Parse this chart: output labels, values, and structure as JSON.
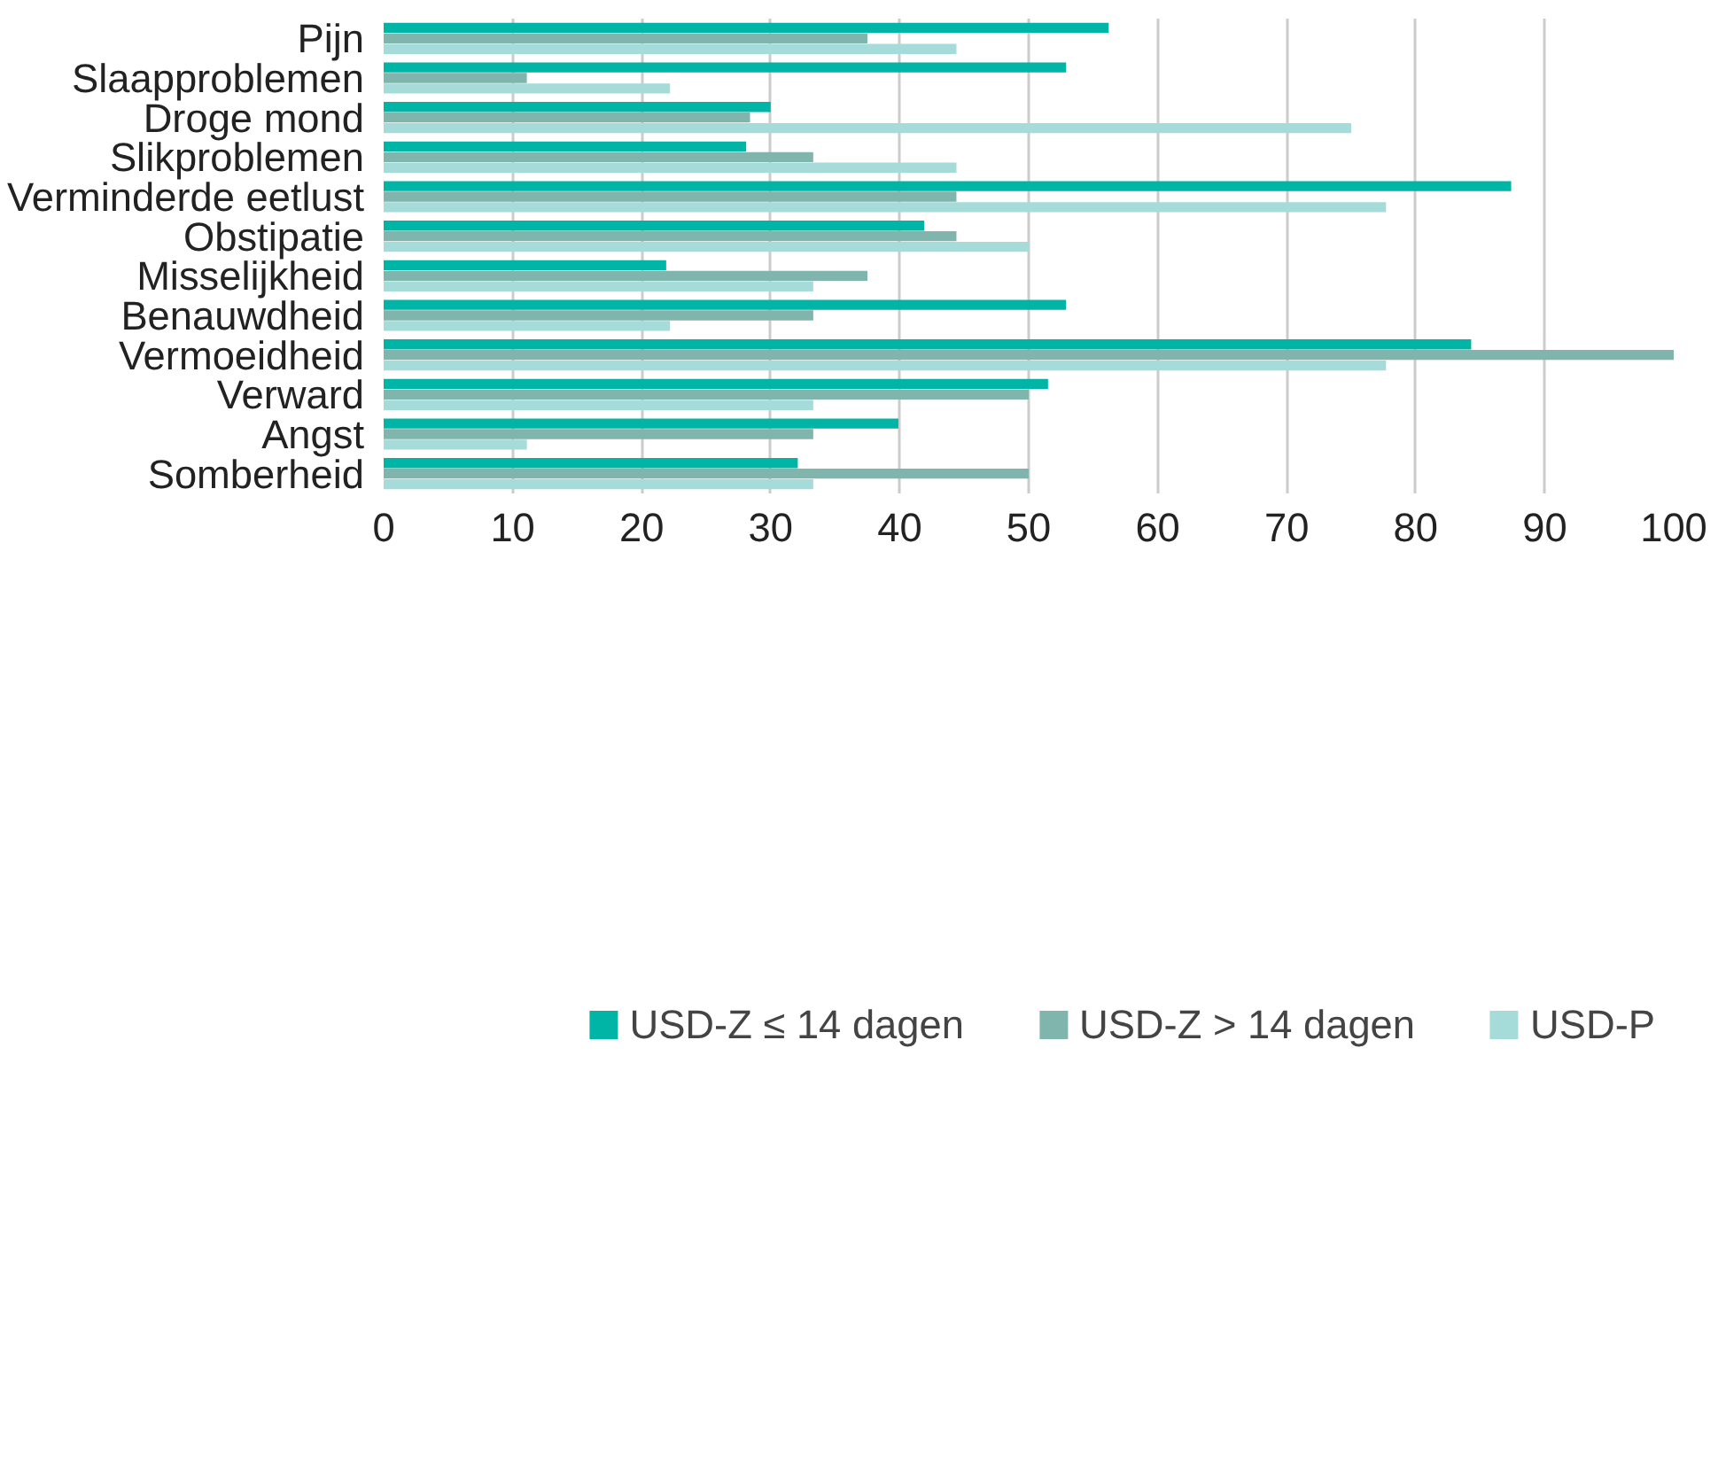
{
  "chart_data": {
    "type": "bar",
    "orientation": "horizontal",
    "categories": [
      "Pijn",
      "Slaapproblemen",
      "Droge mond",
      "Slikproblemen",
      "Verminderde eetlust",
      "Obstipatie",
      "Misselijkheid",
      "Benauwdheid",
      "Vermoeidheid",
      "Verward",
      "Angst",
      "Somberheid"
    ],
    "series": [
      {
        "name": "USD-Z ≤ 14 dagen",
        "color": "#00b5a5",
        "values": [
          56.2,
          52.9,
          30.0,
          28.1,
          87.4,
          41.9,
          21.9,
          52.9,
          84.3,
          51.5,
          39.9,
          32.1
        ]
      },
      {
        "name": "USD-Z > 14 dagen",
        "color": "#7fb5ad",
        "values": [
          37.5,
          11.1,
          28.4,
          33.3,
          44.4,
          44.4,
          37.5,
          33.3,
          100,
          50,
          33.3,
          50
        ]
      },
      {
        "name": "USD-P",
        "color": "#a5dbd8",
        "values": [
          44.4,
          22.2,
          75.0,
          44.4,
          77.7,
          50,
          33.3,
          22.2,
          77.7,
          33.3,
          11.1,
          33.3
        ]
      }
    ],
    "xlim": [
      0,
      100
    ],
    "xticks": [
      0,
      10,
      20,
      30,
      40,
      50,
      60,
      70,
      80,
      90,
      100
    ],
    "grid": "x",
    "legend": "bottom"
  }
}
